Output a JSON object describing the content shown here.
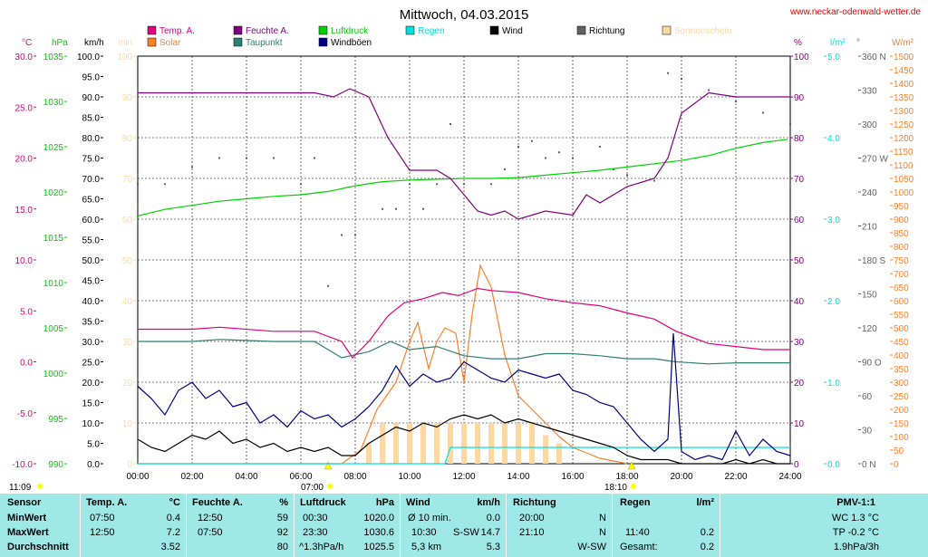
{
  "header": {
    "title": "Mittwoch, 04.03.2015",
    "website": "www.neckar-odenwald-wetter.de"
  },
  "legend": [
    {
      "key": "temp",
      "label": "Temp. A.",
      "color": "#e0007f"
    },
    {
      "key": "solar",
      "label": "Solar",
      "color": "#ff7f27"
    },
    {
      "key": "hum",
      "label": "Feuchte A.",
      "color": "#800080"
    },
    {
      "key": "dew",
      "label": "Taupunkt",
      "color": "#2f7f6f"
    },
    {
      "key": "press",
      "label": "Luftdruck",
      "color": "#00d000"
    },
    {
      "key": "gust",
      "label": "Windböen",
      "color": "#000080"
    },
    {
      "key": "rain",
      "label": "Regen",
      "color": "#00e0e0"
    },
    {
      "key": "wind",
      "label": "Wind",
      "color": "#000000"
    },
    {
      "key": "dir",
      "label": "Richtung",
      "color": "#606060"
    },
    {
      "key": "sun",
      "label": "Sonnenschein",
      "color": "#ffd8a0"
    }
  ],
  "colors": {
    "grid": "#000000",
    "plot_bg": "#ffffff",
    "stats_bg": "#9fe8e8"
  },
  "chart_data": {
    "type": "line",
    "title": "Mittwoch, 04.03.2015",
    "xlim": [
      0,
      24
    ],
    "x_ticks": [
      "00:00",
      "02:00",
      "04:00",
      "06:00",
      "08:00",
      "10:00",
      "12:00",
      "14:00",
      "16:00",
      "18:00",
      "20:00",
      "22:00",
      "24:00"
    ],
    "grid": true,
    "sunrise": "07:00",
    "sunset": "18:10",
    "daylength": "11:09",
    "axes": {
      "temp": {
        "unit": "°C",
        "ylim": [
          -10,
          30
        ],
        "ticks": [
          "30.0",
          "25.0",
          "20.0",
          "15.0",
          "10.0",
          "5.0",
          "0.0",
          "-5.0",
          "-10.0"
        ],
        "color": "#e0007f"
      },
      "press": {
        "unit": "hPa",
        "ylim": [
          990,
          1040
        ],
        "ticks": [
          "1035",
          "1030",
          "1025",
          "1020",
          "1015",
          "1010",
          "1005",
          "1000",
          "995",
          "990"
        ],
        "color": "#00d000"
      },
      "wind": {
        "unit": "km/h",
        "ylim": [
          0,
          100
        ],
        "ticks": [
          "100.0",
          "95.0",
          "90.0",
          "85.0",
          "80.0",
          "75.0",
          "70.0",
          "65.0",
          "60.0",
          "55.0",
          "50.0",
          "45.0",
          "40.0",
          "35.0",
          "30.0",
          "25.0",
          "20.0",
          "15.0",
          "10.0",
          "5.0",
          "0.0"
        ],
        "color": "#000000"
      },
      "sun": {
        "unit": "min",
        "ylim": [
          0,
          100
        ],
        "ticks": [
          "100",
          "90",
          "80",
          "70",
          "60",
          "50",
          "40",
          "30",
          "20",
          "10",
          "0"
        ],
        "color": "#ffd8a0"
      },
      "hum": {
        "unit": "%",
        "ylim": [
          0,
          100
        ],
        "ticks": [
          "100",
          "90",
          "80",
          "70",
          "60",
          "50",
          "40",
          "30",
          "20",
          "10",
          "0"
        ],
        "color": "#800080"
      },
      "rain": {
        "unit": "l/m²",
        "ylim": [
          0,
          5
        ],
        "ticks": [
          "5.0",
          "4.0",
          "3.0",
          "2.0",
          "1.0",
          "0.0"
        ],
        "color": "#00e0e0"
      },
      "dir": {
        "unit": "°",
        "ylim": [
          0,
          360
        ],
        "ticks": [
          "360 N",
          "330",
          "300",
          "270 W",
          "240",
          "210",
          "180 S",
          "150",
          "120",
          "90 O",
          "60",
          "30",
          "0 N"
        ],
        "color": "#606060"
      },
      "solar": {
        "unit": "W/m²",
        "ylim": [
          0,
          1500
        ],
        "ticks": [
          "1500",
          "1450",
          "1400",
          "1350",
          "1300",
          "1250",
          "1200",
          "1150",
          "1100",
          "1050",
          "1000",
          "950",
          "900",
          "850",
          "800",
          "750",
          "700",
          "650",
          "600",
          "550",
          "500",
          "450",
          "400",
          "350",
          "300",
          "250",
          "200",
          "150",
          "100",
          "50",
          "0"
        ],
        "color": "#ff7f27"
      }
    },
    "series": [
      {
        "name": "Temp. A.",
        "axis": "temp",
        "x": [
          0,
          2,
          3,
          5,
          6.5,
          7.5,
          7.9,
          8.5,
          9.2,
          9.8,
          10.5,
          11.2,
          11.8,
          12.5,
          13,
          14,
          15,
          16,
          17,
          18,
          19,
          19.8,
          21,
          22,
          23,
          24
        ],
        "y": [
          3.2,
          3.2,
          3.4,
          3.0,
          3.0,
          2.0,
          0.4,
          2.0,
          4.5,
          5.8,
          6.2,
          6.8,
          6.5,
          7.2,
          7.0,
          6.8,
          6.2,
          5.8,
          5.5,
          4.8,
          4.2,
          3.0,
          1.8,
          1.5,
          1.2,
          1.2
        ]
      },
      {
        "name": "Taupunkt",
        "axis": "temp",
        "x": [
          0,
          2,
          3,
          5,
          6.5,
          7.5,
          8.5,
          9.3,
          10,
          11,
          12,
          13,
          14,
          15,
          16,
          17,
          18,
          19,
          19.8,
          21,
          22,
          23,
          24
        ],
        "y": [
          2.0,
          2.0,
          2.2,
          2.0,
          2.0,
          0.4,
          1.0,
          2.0,
          1.2,
          1.5,
          0.6,
          0.3,
          0.3,
          0.8,
          0.8,
          0.6,
          0.3,
          0.3,
          0.0,
          -0.2,
          -0.1,
          -0.1,
          -0.1
        ]
      },
      {
        "name": "Feuchte A.",
        "axis": "hum",
        "x": [
          0,
          4,
          6.5,
          7.2,
          7.8,
          8.5,
          9.2,
          10,
          10.5,
          11,
          11.5,
          12.5,
          13,
          13.5,
          14,
          15,
          16,
          16.5,
          17,
          18,
          19,
          19.5,
          20,
          21,
          22,
          23,
          24
        ],
        "y": [
          91,
          91,
          91,
          90,
          92,
          90,
          80,
          72,
          72,
          72,
          70,
          62,
          61,
          62,
          60,
          62,
          61,
          66,
          64,
          68,
          70,
          75,
          86,
          91,
          90,
          90,
          90
        ]
      },
      {
        "name": "Luftdruck",
        "axis": "press",
        "x": [
          0,
          1,
          2,
          3,
          4,
          5,
          6,
          7,
          8,
          9,
          10,
          11,
          12,
          13,
          14,
          15,
          16,
          17,
          18,
          19,
          20,
          21,
          22,
          23,
          23.9
        ],
        "y": [
          1020.4,
          1021.2,
          1021.7,
          1022.2,
          1022.5,
          1022.8,
          1023.0,
          1023.4,
          1024.1,
          1024.6,
          1024.8,
          1024.9,
          1025.0,
          1025.0,
          1025.1,
          1025.4,
          1025.7,
          1026.0,
          1026.4,
          1026.8,
          1027.2,
          1027.8,
          1028.7,
          1029.4,
          1029.8
        ]
      },
      {
        "name": "Windböen",
        "axis": "wind",
        "x": [
          0,
          0.5,
          1,
          1.5,
          2,
          2.5,
          3,
          3.5,
          4,
          4.5,
          5,
          5.5,
          6,
          6.5,
          7,
          7.5,
          8,
          8.5,
          9,
          9.5,
          10,
          10.5,
          11,
          11.5,
          12,
          12.5,
          13,
          13.5,
          14,
          14.5,
          15,
          15.5,
          16,
          16.5,
          17,
          17.5,
          18,
          18.5,
          19,
          19.5,
          19.7,
          20,
          20.5,
          21,
          21.5,
          22,
          22.5,
          23,
          23.5,
          24
        ],
        "y": [
          19,
          16,
          12,
          18,
          20,
          16,
          18,
          14,
          15,
          10,
          12,
          9,
          13,
          11,
          12,
          9,
          11,
          14,
          18,
          24,
          19,
          22,
          20,
          21,
          25,
          23,
          21,
          20,
          23,
          22,
          21,
          22,
          18,
          17,
          15,
          14,
          10,
          6,
          3,
          6,
          32,
          3,
          1,
          2,
          1,
          8,
          2,
          6,
          3,
          2
        ]
      },
      {
        "name": "Wind",
        "axis": "wind",
        "x": [
          0,
          0.5,
          1,
          1.5,
          2,
          2.5,
          3,
          3.5,
          4,
          4.5,
          5,
          5.5,
          6,
          6.5,
          7,
          7.5,
          8,
          8.5,
          9,
          9.5,
          10,
          10.5,
          11,
          11.5,
          12,
          12.5,
          13,
          13.5,
          14,
          14.5,
          15,
          15.5,
          16,
          16.5,
          17,
          17.5,
          18,
          18.5,
          19,
          19.5,
          20,
          20.5,
          21,
          21.5,
          22,
          22.5,
          23,
          23.5,
          24
        ],
        "y": [
          6,
          4,
          3,
          5,
          7,
          6,
          8,
          5,
          6,
          4,
          5,
          3,
          4,
          3,
          4,
          2,
          2,
          5,
          7,
          9,
          8,
          10,
          9,
          11,
          12,
          11,
          12,
          10,
          11,
          10,
          9,
          8,
          7,
          6,
          5,
          4,
          2,
          1,
          1,
          1,
          0,
          0,
          0,
          0,
          1,
          0,
          1,
          0,
          0
        ]
      },
      {
        "name": "Solar",
        "axis": "solar",
        "x": [
          0,
          7.5,
          8.2,
          8.8,
          9.5,
          10,
          10.3,
          10.7,
          11,
          11.3,
          11.7,
          12,
          12.3,
          12.6,
          13,
          13.5,
          14,
          14.5,
          15,
          15.5,
          16,
          16.5,
          17,
          17.5,
          18
        ],
        "y": [
          0,
          0,
          50,
          200,
          300,
          450,
          520,
          350,
          450,
          500,
          480,
          300,
          550,
          730,
          650,
          400,
          250,
          200,
          150,
          100,
          60,
          40,
          20,
          10,
          0
        ]
      },
      {
        "name": "Regen",
        "axis": "rain",
        "x": [
          0,
          11.3,
          11.5,
          24
        ],
        "y": [
          0,
          0,
          0.2,
          0.2
        ]
      },
      {
        "name": "Richtung",
        "axis": "dir",
        "x": [
          0,
          1,
          2,
          3,
          4,
          5,
          6,
          6.5,
          7,
          7.5,
          8,
          9,
          9.5,
          10,
          10.5,
          11,
          11.5,
          12,
          13,
          13.5,
          14,
          14.5,
          15,
          15.5,
          16,
          17,
          17.5,
          18,
          19,
          19.5,
          20,
          21,
          22,
          23,
          24
        ],
        "y": [
          247,
          247,
          262,
          270,
          270,
          270,
          247,
          270,
          157,
          202,
          202,
          225,
          225,
          247,
          225,
          247,
          300,
          247,
          247,
          260,
          280,
          285,
          270,
          275,
          270,
          280,
          260,
          255,
          250,
          345,
          340,
          330,
          320,
          310,
          300
        ]
      },
      {
        "name": "Sonnenschein",
        "axis": "sun",
        "x": [
          8.5,
          9,
          9.5,
          10,
          10.5,
          11,
          11.5,
          12,
          12.5,
          13,
          13.5,
          14,
          14.5,
          15,
          15.5
        ],
        "y": [
          5,
          10,
          10,
          10,
          10,
          10,
          10,
          10,
          10,
          10,
          10,
          10,
          10,
          7,
          5
        ]
      }
    ]
  },
  "stats": {
    "sensor": {
      "h": "Sensor",
      "rows": [
        "MinWert",
        "MaxWert",
        "Durchschnitt"
      ]
    },
    "temp": {
      "h": "Temp. A.",
      "unit": "°C",
      "times": [
        "07:50",
        "12:50",
        ""
      ],
      "vals": [
        "0.4",
        "7.2",
        "3.52"
      ]
    },
    "hum": {
      "h": "Feuchte A.",
      "unit": "%",
      "times": [
        "12:50",
        "07:50",
        ""
      ],
      "vals": [
        "59",
        "92",
        "80"
      ]
    },
    "press": {
      "h": "Luftdruck",
      "unit": "hPa",
      "times": [
        "00:30",
        "23:30",
        "^1.3hPa/h"
      ],
      "vals": [
        "1020.0",
        "1030.6",
        "1025.5"
      ]
    },
    "wind": {
      "h": "Wind",
      "unit": "km/h",
      "times": [
        "Ø 10 min.",
        "10:30",
        "5,3 km"
      ],
      "mid": [
        "",
        "S-SW",
        ""
      ],
      "vals": [
        "0.0",
        "14.7",
        "5.3"
      ]
    },
    "dir": {
      "h": "Richtung",
      "times": [
        "20:00",
        "21:10",
        ""
      ],
      "vals": [
        "N",
        "N",
        "W-SW"
      ]
    },
    "rain": {
      "h": "Regen",
      "unit": "l/m²",
      "times": [
        "",
        "11:40",
        "Gesamt:"
      ],
      "vals": [
        "",
        "0.2",
        "0.2"
      ]
    },
    "pmv": {
      "h": "PMV-1:1",
      "vals": [
        "WC 1.3 °C",
        "TP -0.2 °C",
        "1.9hPa/3h"
      ]
    }
  }
}
